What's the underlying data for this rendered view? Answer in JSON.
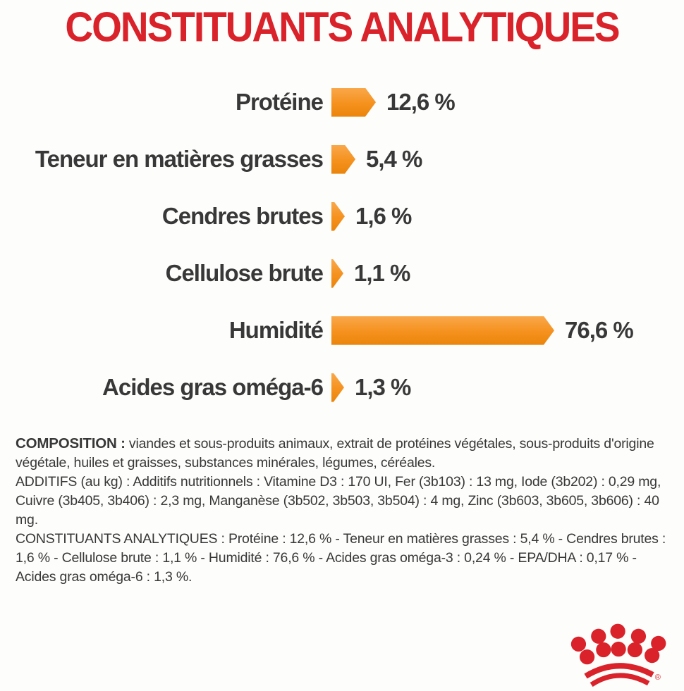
{
  "title": {
    "text": "CONSTITUANTS ANALYTIQUES",
    "color": "#d9222a"
  },
  "chart_data": {
    "type": "bar",
    "orientation": "horizontal",
    "title": "CONSTITUANTS ANALYTIQUES",
    "categories": [
      "Protéine",
      "Teneur en matières grasses",
      "Cendres brutes",
      "Cellulose brute",
      "Humidité",
      "Acides gras oméga-6"
    ],
    "values": [
      12.6,
      5.4,
      1.6,
      1.1,
      76.6,
      1.3
    ],
    "value_labels": [
      "12,6 %",
      "5,4 %",
      "1,6 %",
      "1,1 %",
      "76,6 %",
      "1,3 %"
    ],
    "unit": "%",
    "xlim": [
      0,
      80
    ],
    "grid": false,
    "legend": false,
    "bar_color": "#f5911d",
    "bar_shape": "arrow-right"
  },
  "fine_print": {
    "paragraphs": [
      {
        "label": "COMPOSITION :",
        "text": " viandes et sous-produits animaux, extrait de protéines végétales, sous-produits d'origine végétale, huiles et graisses, substances minérales, légumes, céréales."
      },
      {
        "label": "",
        "text": "ADDITIFS (au kg) : Additifs nutritionnels : Vitamine D3 : 170 UI, Fer (3b103) : 13 mg, Iode (3b202) : 0,29 mg, Cuivre (3b405, 3b406) : 2,3 mg, Manganèse (3b502, 3b503, 3b504) : 4 mg, Zinc (3b603, 3b605, 3b606) : 40 mg."
      },
      {
        "label": "",
        "text": "CONSTITUANTS ANALYTIQUES : Protéine : 12,6 % - Teneur en matières grasses : 5,4 % - Cendres brutes : 1,6 % - Cellulose brute : 1,1 % - Humidité : 76,6 % - Acides gras oméga-3 : 0,24 % - EPA/DHA : 0,17 % - Acides gras oméga-6 : 1,3 %."
      }
    ]
  },
  "logo": {
    "name": "royal-canin-crown",
    "color": "#d9222a",
    "registered_mark": "®"
  }
}
